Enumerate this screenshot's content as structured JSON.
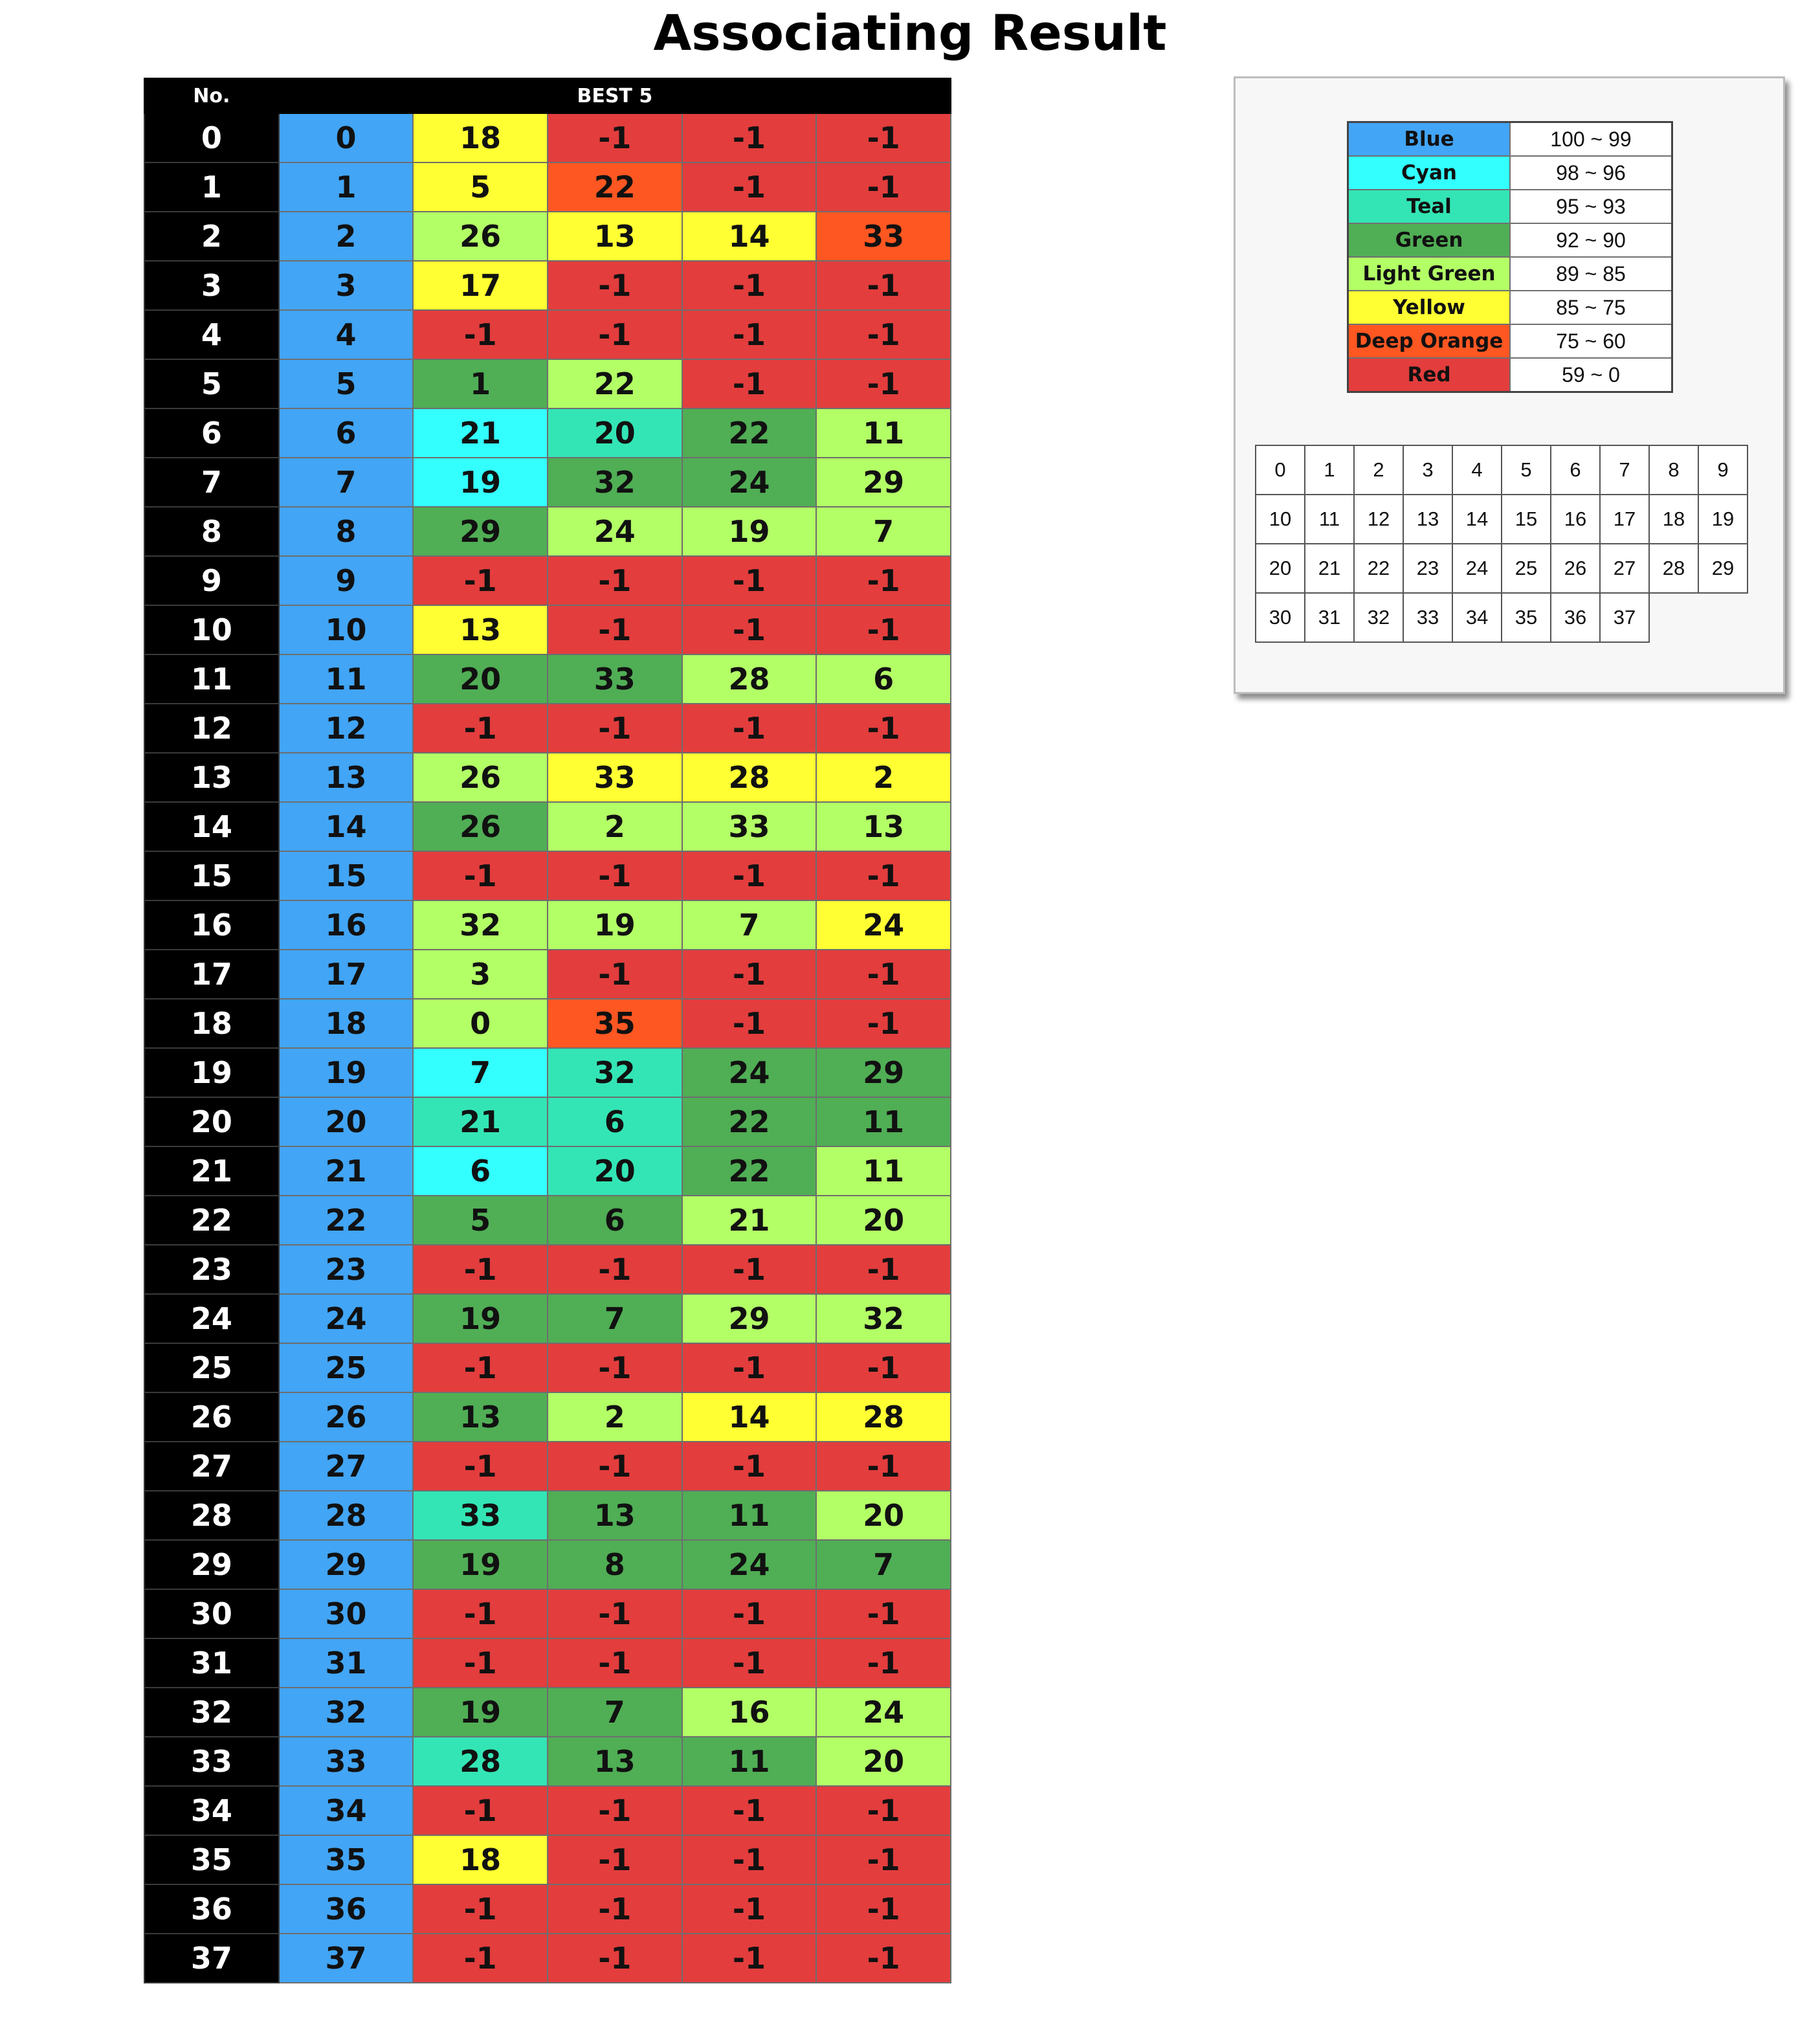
{
  "title": "Associating Result",
  "table": {
    "headers": {
      "no": "No.",
      "best": "BEST 5"
    },
    "colors": {
      "blue": "#42a5f5",
      "cyan": "#33ffff",
      "teal": "#33e5b5",
      "green": "#50ae55",
      "lightgreen": "#b3ff66",
      "yellow": "#ffff33",
      "orange": "#ff5722",
      "red": "#e33d3d"
    },
    "rows": [
      {
        "no": "0",
        "cells": [
          [
            "0",
            "blue"
          ],
          [
            "18",
            "yellow"
          ],
          [
            "-1",
            "red"
          ],
          [
            "-1",
            "red"
          ],
          [
            "-1",
            "red"
          ]
        ]
      },
      {
        "no": "1",
        "cells": [
          [
            "1",
            "blue"
          ],
          [
            "5",
            "yellow"
          ],
          [
            "22",
            "orange"
          ],
          [
            "-1",
            "red"
          ],
          [
            "-1",
            "red"
          ]
        ]
      },
      {
        "no": "2",
        "cells": [
          [
            "2",
            "blue"
          ],
          [
            "26",
            "lightgreen"
          ],
          [
            "13",
            "yellow"
          ],
          [
            "14",
            "yellow"
          ],
          [
            "33",
            "orange"
          ]
        ]
      },
      {
        "no": "3",
        "cells": [
          [
            "3",
            "blue"
          ],
          [
            "17",
            "yellow"
          ],
          [
            "-1",
            "red"
          ],
          [
            "-1",
            "red"
          ],
          [
            "-1",
            "red"
          ]
        ]
      },
      {
        "no": "4",
        "cells": [
          [
            "4",
            "blue"
          ],
          [
            "-1",
            "red"
          ],
          [
            "-1",
            "red"
          ],
          [
            "-1",
            "red"
          ],
          [
            "-1",
            "red"
          ]
        ]
      },
      {
        "no": "5",
        "cells": [
          [
            "5",
            "blue"
          ],
          [
            "1",
            "green"
          ],
          [
            "22",
            "lightgreen"
          ],
          [
            "-1",
            "red"
          ],
          [
            "-1",
            "red"
          ]
        ]
      },
      {
        "no": "6",
        "cells": [
          [
            "6",
            "blue"
          ],
          [
            "21",
            "cyan"
          ],
          [
            "20",
            "teal"
          ],
          [
            "22",
            "green"
          ],
          [
            "11",
            "lightgreen"
          ]
        ]
      },
      {
        "no": "7",
        "cells": [
          [
            "7",
            "blue"
          ],
          [
            "19",
            "cyan"
          ],
          [
            "32",
            "green"
          ],
          [
            "24",
            "green"
          ],
          [
            "29",
            "lightgreen"
          ]
        ]
      },
      {
        "no": "8",
        "cells": [
          [
            "8",
            "blue"
          ],
          [
            "29",
            "green"
          ],
          [
            "24",
            "lightgreen"
          ],
          [
            "19",
            "lightgreen"
          ],
          [
            "7",
            "lightgreen"
          ]
        ]
      },
      {
        "no": "9",
        "cells": [
          [
            "9",
            "blue"
          ],
          [
            "-1",
            "red"
          ],
          [
            "-1",
            "red"
          ],
          [
            "-1",
            "red"
          ],
          [
            "-1",
            "red"
          ]
        ]
      },
      {
        "no": "10",
        "cells": [
          [
            "10",
            "blue"
          ],
          [
            "13",
            "yellow"
          ],
          [
            "-1",
            "red"
          ],
          [
            "-1",
            "red"
          ],
          [
            "-1",
            "red"
          ]
        ]
      },
      {
        "no": "11",
        "cells": [
          [
            "11",
            "blue"
          ],
          [
            "20",
            "green"
          ],
          [
            "33",
            "green"
          ],
          [
            "28",
            "lightgreen"
          ],
          [
            "6",
            "lightgreen"
          ]
        ]
      },
      {
        "no": "12",
        "cells": [
          [
            "12",
            "blue"
          ],
          [
            "-1",
            "red"
          ],
          [
            "-1",
            "red"
          ],
          [
            "-1",
            "red"
          ],
          [
            "-1",
            "red"
          ]
        ]
      },
      {
        "no": "13",
        "cells": [
          [
            "13",
            "blue"
          ],
          [
            "26",
            "lightgreen"
          ],
          [
            "33",
            "yellow"
          ],
          [
            "28",
            "yellow"
          ],
          [
            "2",
            "yellow"
          ]
        ]
      },
      {
        "no": "14",
        "cells": [
          [
            "14",
            "blue"
          ],
          [
            "26",
            "green"
          ],
          [
            "2",
            "lightgreen"
          ],
          [
            "33",
            "lightgreen"
          ],
          [
            "13",
            "lightgreen"
          ]
        ]
      },
      {
        "no": "15",
        "cells": [
          [
            "15",
            "blue"
          ],
          [
            "-1",
            "red"
          ],
          [
            "-1",
            "red"
          ],
          [
            "-1",
            "red"
          ],
          [
            "-1",
            "red"
          ]
        ]
      },
      {
        "no": "16",
        "cells": [
          [
            "16",
            "blue"
          ],
          [
            "32",
            "lightgreen"
          ],
          [
            "19",
            "lightgreen"
          ],
          [
            "7",
            "lightgreen"
          ],
          [
            "24",
            "yellow"
          ]
        ]
      },
      {
        "no": "17",
        "cells": [
          [
            "17",
            "blue"
          ],
          [
            "3",
            "lightgreen"
          ],
          [
            "-1",
            "red"
          ],
          [
            "-1",
            "red"
          ],
          [
            "-1",
            "red"
          ]
        ]
      },
      {
        "no": "18",
        "cells": [
          [
            "18",
            "blue"
          ],
          [
            "0",
            "lightgreen"
          ],
          [
            "35",
            "orange"
          ],
          [
            "-1",
            "red"
          ],
          [
            "-1",
            "red"
          ]
        ]
      },
      {
        "no": "19",
        "cells": [
          [
            "19",
            "blue"
          ],
          [
            "7",
            "cyan"
          ],
          [
            "32",
            "teal"
          ],
          [
            "24",
            "green"
          ],
          [
            "29",
            "green"
          ]
        ]
      },
      {
        "no": "20",
        "cells": [
          [
            "20",
            "blue"
          ],
          [
            "21",
            "teal"
          ],
          [
            "6",
            "teal"
          ],
          [
            "22",
            "green"
          ],
          [
            "11",
            "green"
          ]
        ]
      },
      {
        "no": "21",
        "cells": [
          [
            "21",
            "blue"
          ],
          [
            "6",
            "cyan"
          ],
          [
            "20",
            "teal"
          ],
          [
            "22",
            "green"
          ],
          [
            "11",
            "lightgreen"
          ]
        ]
      },
      {
        "no": "22",
        "cells": [
          [
            "22",
            "blue"
          ],
          [
            "5",
            "green"
          ],
          [
            "6",
            "green"
          ],
          [
            "21",
            "lightgreen"
          ],
          [
            "20",
            "lightgreen"
          ]
        ]
      },
      {
        "no": "23",
        "cells": [
          [
            "23",
            "blue"
          ],
          [
            "-1",
            "red"
          ],
          [
            "-1",
            "red"
          ],
          [
            "-1",
            "red"
          ],
          [
            "-1",
            "red"
          ]
        ]
      },
      {
        "no": "24",
        "cells": [
          [
            "24",
            "blue"
          ],
          [
            "19",
            "green"
          ],
          [
            "7",
            "green"
          ],
          [
            "29",
            "lightgreen"
          ],
          [
            "32",
            "lightgreen"
          ]
        ]
      },
      {
        "no": "25",
        "cells": [
          [
            "25",
            "blue"
          ],
          [
            "-1",
            "red"
          ],
          [
            "-1",
            "red"
          ],
          [
            "-1",
            "red"
          ],
          [
            "-1",
            "red"
          ]
        ]
      },
      {
        "no": "26",
        "cells": [
          [
            "26",
            "blue"
          ],
          [
            "13",
            "green"
          ],
          [
            "2",
            "lightgreen"
          ],
          [
            "14",
            "yellow"
          ],
          [
            "28",
            "yellow"
          ]
        ]
      },
      {
        "no": "27",
        "cells": [
          [
            "27",
            "blue"
          ],
          [
            "-1",
            "red"
          ],
          [
            "-1",
            "red"
          ],
          [
            "-1",
            "red"
          ],
          [
            "-1",
            "red"
          ]
        ]
      },
      {
        "no": "28",
        "cells": [
          [
            "28",
            "blue"
          ],
          [
            "33",
            "teal"
          ],
          [
            "13",
            "green"
          ],
          [
            "11",
            "green"
          ],
          [
            "20",
            "lightgreen"
          ]
        ]
      },
      {
        "no": "29",
        "cells": [
          [
            "29",
            "blue"
          ],
          [
            "19",
            "green"
          ],
          [
            "8",
            "green"
          ],
          [
            "24",
            "green"
          ],
          [
            "7",
            "green"
          ]
        ]
      },
      {
        "no": "30",
        "cells": [
          [
            "30",
            "blue"
          ],
          [
            "-1",
            "red"
          ],
          [
            "-1",
            "red"
          ],
          [
            "-1",
            "red"
          ],
          [
            "-1",
            "red"
          ]
        ]
      },
      {
        "no": "31",
        "cells": [
          [
            "31",
            "blue"
          ],
          [
            "-1",
            "red"
          ],
          [
            "-1",
            "red"
          ],
          [
            "-1",
            "red"
          ],
          [
            "-1",
            "red"
          ]
        ]
      },
      {
        "no": "32",
        "cells": [
          [
            "32",
            "blue"
          ],
          [
            "19",
            "green"
          ],
          [
            "7",
            "green"
          ],
          [
            "16",
            "lightgreen"
          ],
          [
            "24",
            "lightgreen"
          ]
        ]
      },
      {
        "no": "33",
        "cells": [
          [
            "33",
            "blue"
          ],
          [
            "28",
            "teal"
          ],
          [
            "13",
            "green"
          ],
          [
            "11",
            "green"
          ],
          [
            "20",
            "lightgreen"
          ]
        ]
      },
      {
        "no": "34",
        "cells": [
          [
            "34",
            "blue"
          ],
          [
            "-1",
            "red"
          ],
          [
            "-1",
            "red"
          ],
          [
            "-1",
            "red"
          ],
          [
            "-1",
            "red"
          ]
        ]
      },
      {
        "no": "35",
        "cells": [
          [
            "35",
            "blue"
          ],
          [
            "18",
            "yellow"
          ],
          [
            "-1",
            "red"
          ],
          [
            "-1",
            "red"
          ],
          [
            "-1",
            "red"
          ]
        ]
      },
      {
        "no": "36",
        "cells": [
          [
            "36",
            "blue"
          ],
          [
            "-1",
            "red"
          ],
          [
            "-1",
            "red"
          ],
          [
            "-1",
            "red"
          ],
          [
            "-1",
            "red"
          ]
        ]
      },
      {
        "no": "37",
        "cells": [
          [
            "37",
            "blue"
          ],
          [
            "-1",
            "red"
          ],
          [
            "-1",
            "red"
          ],
          [
            "-1",
            "red"
          ],
          [
            "-1",
            "red"
          ]
        ]
      }
    ]
  },
  "legend": [
    {
      "name": "Blue",
      "range": "100 ~ 99",
      "color": "#42a5f5"
    },
    {
      "name": "Cyan",
      "range": "98 ~ 96",
      "color": "#33ffff"
    },
    {
      "name": "Teal",
      "range": "95 ~ 93",
      "color": "#33e5b5"
    },
    {
      "name": "Green",
      "range": "92 ~ 90",
      "color": "#50ae55"
    },
    {
      "name": "Light Green",
      "range": "89 ~ 85",
      "color": "#b3ff66"
    },
    {
      "name": "Yellow",
      "range": "85 ~ 75",
      "color": "#ffff33"
    },
    {
      "name": "Deep Orange",
      "range": "75 ~ 60",
      "color": "#ff5722"
    },
    {
      "name": "Red",
      "range": "59 ~ 0",
      "color": "#e33d3d"
    }
  ],
  "index_grid": [
    [
      "0",
      "1",
      "2",
      "3",
      "4",
      "5",
      "6",
      "7",
      "8",
      "9"
    ],
    [
      "10",
      "11",
      "12",
      "13",
      "14",
      "15",
      "16",
      "17",
      "18",
      "19"
    ],
    [
      "20",
      "21",
      "22",
      "23",
      "24",
      "25",
      "26",
      "27",
      "28",
      "29"
    ],
    [
      "30",
      "31",
      "32",
      "33",
      "34",
      "35",
      "36",
      "37"
    ]
  ]
}
